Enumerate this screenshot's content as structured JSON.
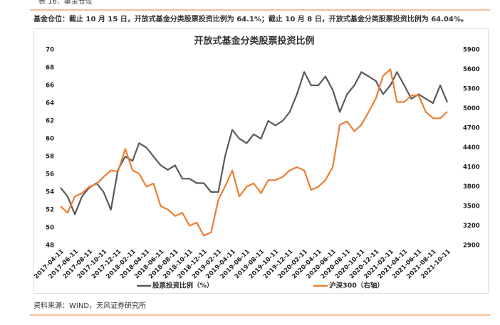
{
  "header": {
    "label": "表 16：基金仓位",
    "caption": "基金仓位：截止 10 月 15 日，开放式基金分类股票投资比例为 64.1%；截止 10 月 8 日，开放式基金分类股票投资比例为 64.04%。"
  },
  "chart_data": {
    "type": "line",
    "title": "开放式基金分类股票投资比例",
    "x": [
      "2017-04-11",
      "2017-05-11",
      "2017-06-11",
      "2017-07-11",
      "2017-08-11",
      "2017-09-11",
      "2017-10-11",
      "2017-11-11",
      "2017-12-11",
      "2018-01-11",
      "2018-02-11",
      "2018-03-11",
      "2018-04-11",
      "2018-05-11",
      "2018-06-11",
      "2018-07-11",
      "2018-08-11",
      "2018-09-11",
      "2018-10-11",
      "2018-11-11",
      "2018-12-11",
      "2019-01-11",
      "2019-02-11",
      "2019-03-11",
      "2019-04-11",
      "2019-05-11",
      "2019-06-11",
      "2019-07-11",
      "2019-08-11",
      "2019-09-11",
      "2019-10-11",
      "2019-11-11",
      "2019-12-11",
      "2020-01-11",
      "2020-02-11",
      "2020-03-11",
      "2020-04-11",
      "2020-05-11",
      "2020-06-11",
      "2020-07-11",
      "2020-08-11",
      "2020-09-11",
      "2020-10-11",
      "2020-11-11",
      "2020-12-11",
      "2021-01-11",
      "2021-02-11",
      "2021-03-11",
      "2021-04-11",
      "2021-05-11",
      "2021-06-11",
      "2021-07-11",
      "2021-08-11",
      "2021-09-11",
      "2021-10-11"
    ],
    "series": [
      {
        "name": "股票投资比例（%）",
        "color": "#595959",
        "values": [
          54.5,
          53.5,
          51.5,
          53.5,
          54.5,
          55,
          54,
          52,
          56.5,
          58,
          57.5,
          59.5,
          59,
          58,
          57,
          56.5,
          57,
          55.5,
          55.5,
          55,
          55,
          54,
          54,
          58,
          61,
          60,
          59.5,
          60.5,
          60,
          62,
          61.5,
          62,
          63,
          65,
          67.5,
          66,
          66,
          67,
          65.5,
          63,
          65,
          66,
          67.5,
          67,
          66.5,
          65,
          66,
          67.5,
          66,
          64.5,
          65,
          64.5,
          64,
          66,
          64.1
        ]
      },
      {
        "name": "沪深300（右轴）",
        "color": "#ed7d31",
        "axis": "y2",
        "values": [
          3500,
          3400,
          3650,
          3700,
          3800,
          3840,
          3950,
          4050,
          4030,
          4380,
          4050,
          4000,
          3800,
          3850,
          3500,
          3450,
          3350,
          3400,
          3200,
          3250,
          3050,
          3100,
          3600,
          3800,
          4050,
          3650,
          3800,
          3850,
          3700,
          3900,
          3900,
          3950,
          4050,
          4100,
          4050,
          3750,
          3800,
          3900,
          4100,
          4750,
          4800,
          4650,
          4750,
          4950,
          5150,
          5500,
          5600,
          5100,
          5100,
          5200,
          5200,
          4950,
          4850,
          4850,
          4950
        ]
      }
    ],
    "xticks": [
      "2017-04-11",
      "2017-06-11",
      "2017-08-11",
      "2017-10-11",
      "2017-12-11",
      "2018-02-11",
      "2018-04-11",
      "2018-06-11",
      "2018-08-11",
      "2018-10-11",
      "2018-12-11",
      "2019-02-11",
      "2019-04-11",
      "2019-06-11",
      "2019-08-11",
      "2019-10-11",
      "2019-12-11",
      "2020-02-11",
      "2020-04-11",
      "2020-06-11",
      "2020-08-11",
      "2020-10-11",
      "2020-12-11",
      "2021-02-11",
      "2021-04-11",
      "2021-06-11",
      "2021-08-11",
      "2021-10-11"
    ],
    "xlim": [
      "2017-04-11",
      "2021-10-11"
    ],
    "ylim": [
      48,
      70
    ],
    "yticks": [
      48,
      50,
      52,
      54,
      56,
      58,
      60,
      62,
      64,
      66,
      68,
      70
    ],
    "y2lim": [
      2900,
      5900
    ],
    "y2ticks": [
      2900,
      3200,
      3500,
      3800,
      4100,
      4400,
      4700,
      5000,
      5300,
      5600,
      5900
    ]
  },
  "source": "资料来源：WIND，天风证券研究所"
}
